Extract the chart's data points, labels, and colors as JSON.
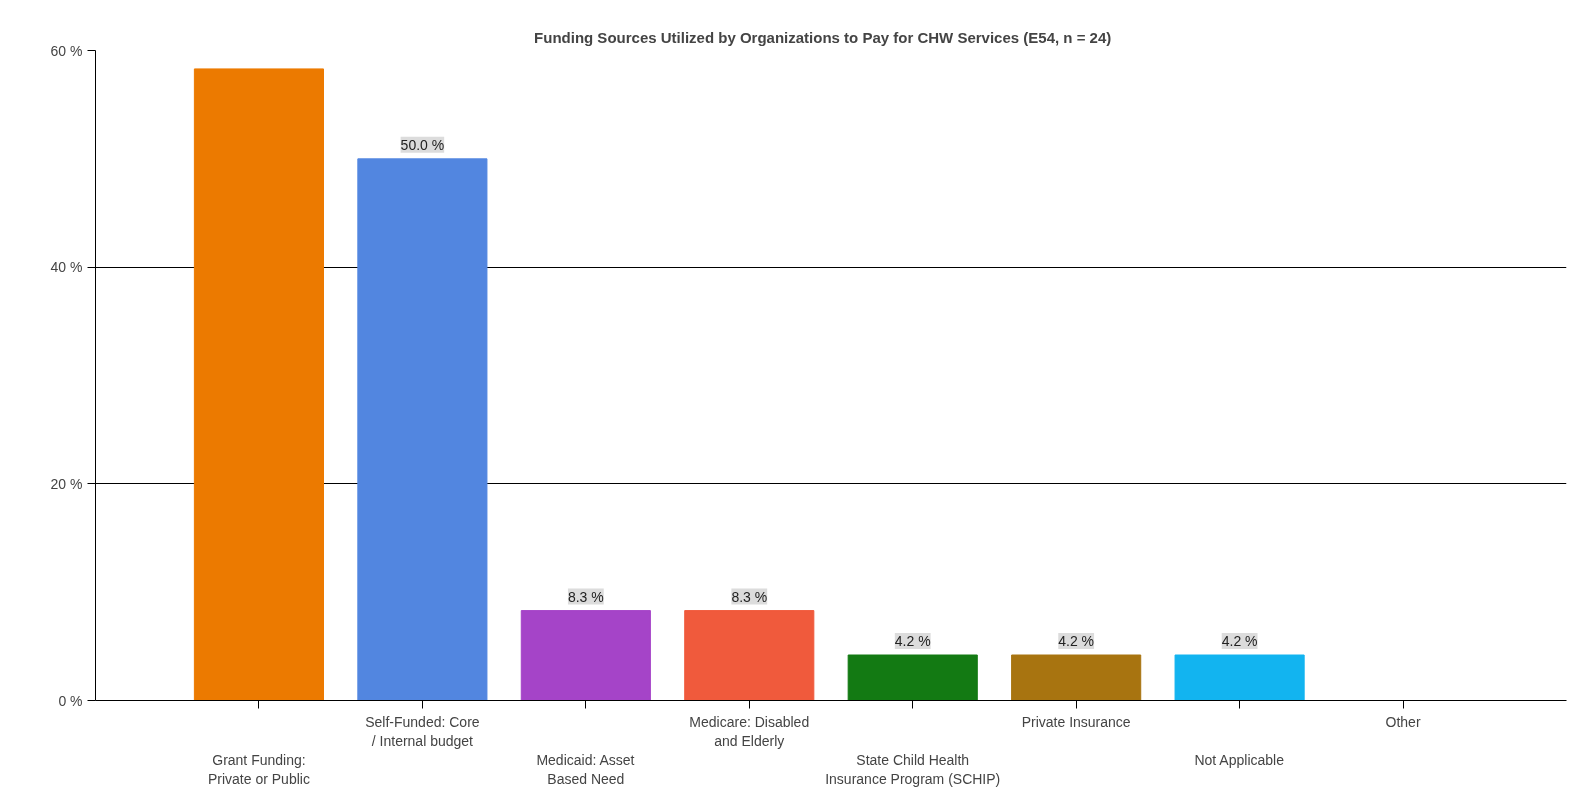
{
  "chart_data": {
    "type": "bar",
    "title": "Funding Sources Utilized by Organizations to Pay for CHW Services     (E54, n = 24)",
    "categories": [
      "Grant Funding:\nPrivate or Public",
      "Self-Funded: Core\n/ Internal budget",
      "Medicaid: Asset\nBased Need",
      "Medicare: Disabled\nand Elderly",
      "State Child Health\nInsurance Program (SCHIP)",
      "Private Insurance",
      "Not Applicable",
      "Other"
    ],
    "values": [
      58.3,
      50.0,
      8.3,
      8.3,
      4.2,
      4.2,
      4.2,
      0
    ],
    "colors": [
      "#ec7a00",
      "#5286e0",
      "#a544c8",
      "#f05a3c",
      "#137a13",
      "#a87410",
      "#12b4f0",
      "#999999"
    ],
    "value_labels": [
      null,
      "50.0 %",
      "8.3 %",
      "8.3 %",
      "4.2 %",
      "4.2 %",
      "4.2 %",
      null
    ],
    "ylim": [
      0,
      60
    ],
    "yticks": [
      {
        "value": 0,
        "label": "0 %"
      },
      {
        "value": 20,
        "label": "20 %"
      },
      {
        "value": 40,
        "label": "40 %"
      },
      {
        "value": 60,
        "label": "60 %"
      }
    ],
    "grid": "y"
  }
}
